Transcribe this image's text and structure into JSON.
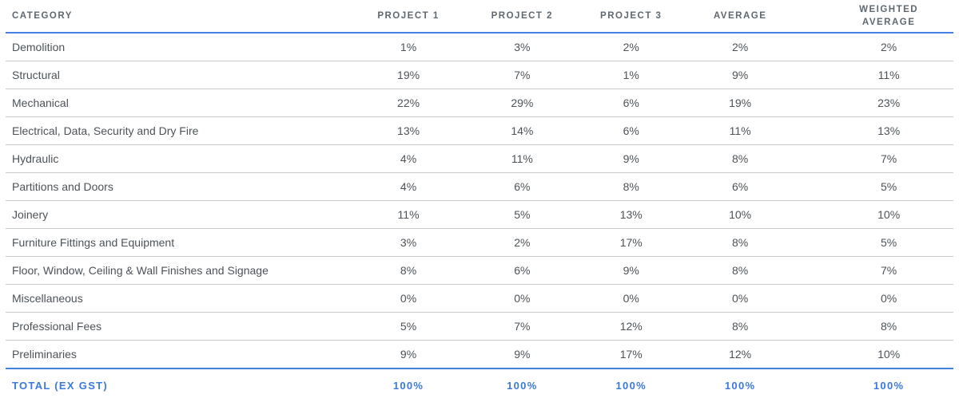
{
  "chart_data": {
    "type": "table",
    "columns": [
      "CATEGORY",
      "PROJECT 1",
      "PROJECT 2",
      "PROJECT 3",
      "AVERAGE",
      "WEIGHTED AVERAGE"
    ],
    "rows": [
      [
        "Demolition",
        "1%",
        "3%",
        "2%",
        "2%",
        "2%"
      ],
      [
        "Structural",
        "19%",
        "7%",
        "1%",
        "9%",
        "11%"
      ],
      [
        "Mechanical",
        "22%",
        "29%",
        "6%",
        "19%",
        "23%"
      ],
      [
        "Electrical, Data, Security and Dry Fire",
        "13%",
        "14%",
        "6%",
        "11%",
        "13%"
      ],
      [
        "Hydraulic",
        "4%",
        "11%",
        "9%",
        "8%",
        "7%"
      ],
      [
        "Partitions and Doors",
        "4%",
        "6%",
        "8%",
        "6%",
        "5%"
      ],
      [
        "Joinery",
        "11%",
        "5%",
        "13%",
        "10%",
        "10%"
      ],
      [
        "Furniture Fittings and Equipment",
        "3%",
        "2%",
        "17%",
        "8%",
        "5%"
      ],
      [
        "Floor, Window, Ceiling & Wall Finishes and Signage",
        "8%",
        "6%",
        "9%",
        "8%",
        "7%"
      ],
      [
        "Miscellaneous",
        "0%",
        "0%",
        "0%",
        "0%",
        "0%"
      ],
      [
        "Professional Fees",
        "5%",
        "7%",
        "12%",
        "8%",
        "8%"
      ],
      [
        "Preliminaries",
        "9%",
        "9%",
        "17%",
        "12%",
        "10%"
      ]
    ],
    "total_row": [
      "TOTAL (EX GST)",
      "100%",
      "100%",
      "100%",
      "100%",
      "100%"
    ]
  },
  "colors": {
    "accent_blue_line": "#4480e4",
    "total_text_blue": "#3b78e0",
    "header_text": "#5f6870",
    "body_text": "#4c5359",
    "row_border": "#c8cacc"
  }
}
